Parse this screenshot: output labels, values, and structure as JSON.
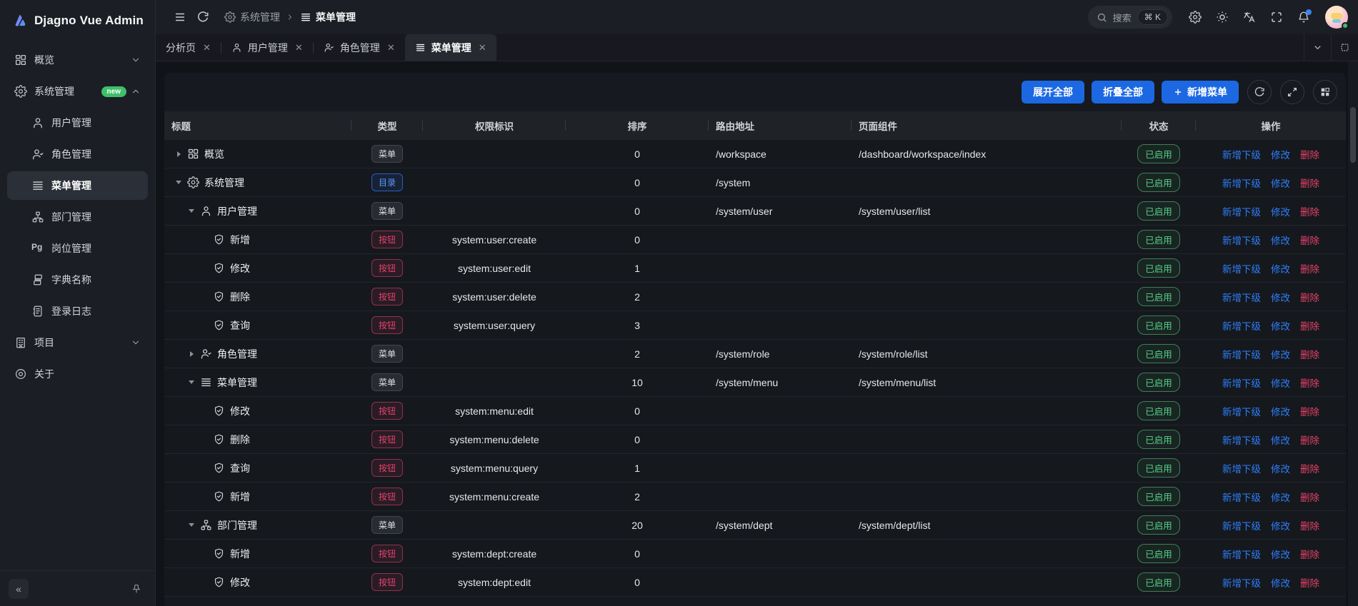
{
  "app": {
    "title": "Djagno Vue Admin"
  },
  "colors": {
    "primary_blue": "#1c68e3",
    "link_blue": "#2e7ef7",
    "danger_red": "#e5426a",
    "success_green": "#55d187",
    "badge_new_green": "#3fbf6a",
    "notification_dot_blue": "#3b82f6"
  },
  "sidebar": {
    "items": [
      {
        "label": "概览",
        "icon": "dashboard-icon",
        "level": 0,
        "chevron": "down"
      },
      {
        "label": "系统管理",
        "icon": "gear-icon",
        "level": 0,
        "chevron": "up",
        "badge": "new"
      },
      {
        "label": "用户管理",
        "icon": "user-icon",
        "level": 1
      },
      {
        "label": "角色管理",
        "icon": "user-check-icon",
        "level": 1
      },
      {
        "label": "菜单管理",
        "icon": "menu-icon",
        "level": 1,
        "active": true
      },
      {
        "label": "部门管理",
        "icon": "org-icon",
        "level": 1
      },
      {
        "label": "岗位管理",
        "icon": "pg-icon",
        "level": 1
      },
      {
        "label": "字典名称",
        "icon": "dict-icon",
        "level": 1
      },
      {
        "label": "登录日志",
        "icon": "log-icon",
        "level": 1
      },
      {
        "label": "项目",
        "icon": "building-icon",
        "level": 0,
        "chevron": "down"
      },
      {
        "label": "关于",
        "icon": "about-icon",
        "level": 0
      }
    ]
  },
  "header": {
    "breadcrumb": [
      {
        "label": "系统管理",
        "icon": "gear-icon"
      },
      {
        "label": "菜单管理",
        "icon": "menu-icon",
        "current": true
      }
    ],
    "search": {
      "label": "搜索",
      "shortcut": "⌘ K"
    }
  },
  "tabs": [
    {
      "label": "分析页"
    },
    {
      "label": "用户管理",
      "icon": "user-icon"
    },
    {
      "label": "角色管理",
      "icon": "user-check-icon"
    },
    {
      "label": "菜单管理",
      "icon": "menu-icon",
      "active": true
    }
  ],
  "toolbar": {
    "expand_all": "展开全部",
    "collapse_all": "折叠全部",
    "add_menu": "新增菜单"
  },
  "table": {
    "columns": [
      "标题",
      "类型",
      "权限标识",
      "排序",
      "路由地址",
      "页面组件",
      "状态",
      "操作"
    ],
    "status_label": "已启用",
    "actions": [
      "新增下级",
      "修改",
      "删除"
    ],
    "rows": [
      {
        "level": 0,
        "expand": "collapsed",
        "icon": "dashboard-icon",
        "title": "概览",
        "type": "菜单",
        "perm": "",
        "sort": "0",
        "route": "/workspace",
        "component": "/dashboard/workspace/index"
      },
      {
        "level": 0,
        "expand": "expanded",
        "icon": "gear-icon",
        "title": "系统管理",
        "type": "目录",
        "perm": "",
        "sort": "0",
        "route": "/system",
        "component": ""
      },
      {
        "level": 1,
        "expand": "expanded",
        "icon": "user-icon",
        "title": "用户管理",
        "type": "菜单",
        "perm": "",
        "sort": "0",
        "route": "/system/user",
        "component": "/system/user/list"
      },
      {
        "level": 2,
        "expand": null,
        "icon": "shield-check-icon",
        "title": "新增",
        "type": "按钮",
        "perm": "system:user:create",
        "sort": "0",
        "route": "",
        "component": ""
      },
      {
        "level": 2,
        "expand": null,
        "icon": "shield-check-icon",
        "title": "修改",
        "type": "按钮",
        "perm": "system:user:edit",
        "sort": "1",
        "route": "",
        "component": ""
      },
      {
        "level": 2,
        "expand": null,
        "icon": "shield-check-icon",
        "title": "删除",
        "type": "按钮",
        "perm": "system:user:delete",
        "sort": "2",
        "route": "",
        "component": ""
      },
      {
        "level": 2,
        "expand": null,
        "icon": "shield-check-icon",
        "title": "查询",
        "type": "按钮",
        "perm": "system:user:query",
        "sort": "3",
        "route": "",
        "component": ""
      },
      {
        "level": 1,
        "expand": "collapsed",
        "icon": "user-check-icon",
        "title": "角色管理",
        "type": "菜单",
        "perm": "",
        "sort": "2",
        "route": "/system/role",
        "component": "/system/role/list"
      },
      {
        "level": 1,
        "expand": "expanded",
        "icon": "menu-icon",
        "title": "菜单管理",
        "type": "菜单",
        "perm": "",
        "sort": "10",
        "route": "/system/menu",
        "component": "/system/menu/list"
      },
      {
        "level": 2,
        "expand": null,
        "icon": "shield-check-icon",
        "title": "修改",
        "type": "按钮",
        "perm": "system:menu:edit",
        "sort": "0",
        "route": "",
        "component": ""
      },
      {
        "level": 2,
        "expand": null,
        "icon": "shield-check-icon",
        "title": "删除",
        "type": "按钮",
        "perm": "system:menu:delete",
        "sort": "0",
        "route": "",
        "component": ""
      },
      {
        "level": 2,
        "expand": null,
        "icon": "shield-check-icon",
        "title": "查询",
        "type": "按钮",
        "perm": "system:menu:query",
        "sort": "1",
        "route": "",
        "component": ""
      },
      {
        "level": 2,
        "expand": null,
        "icon": "shield-check-icon",
        "title": "新增",
        "type": "按钮",
        "perm": "system:menu:create",
        "sort": "2",
        "route": "",
        "component": ""
      },
      {
        "level": 1,
        "expand": "expanded",
        "icon": "org-icon",
        "title": "部门管理",
        "type": "菜单",
        "perm": "",
        "sort": "20",
        "route": "/system/dept",
        "component": "/system/dept/list"
      },
      {
        "level": 2,
        "expand": null,
        "icon": "shield-check-icon",
        "title": "新增",
        "type": "按钮",
        "perm": "system:dept:create",
        "sort": "0",
        "route": "",
        "component": ""
      },
      {
        "level": 2,
        "expand": null,
        "icon": "shield-check-icon",
        "title": "修改",
        "type": "按钮",
        "perm": "system:dept:edit",
        "sort": "0",
        "route": "",
        "component": ""
      }
    ]
  }
}
